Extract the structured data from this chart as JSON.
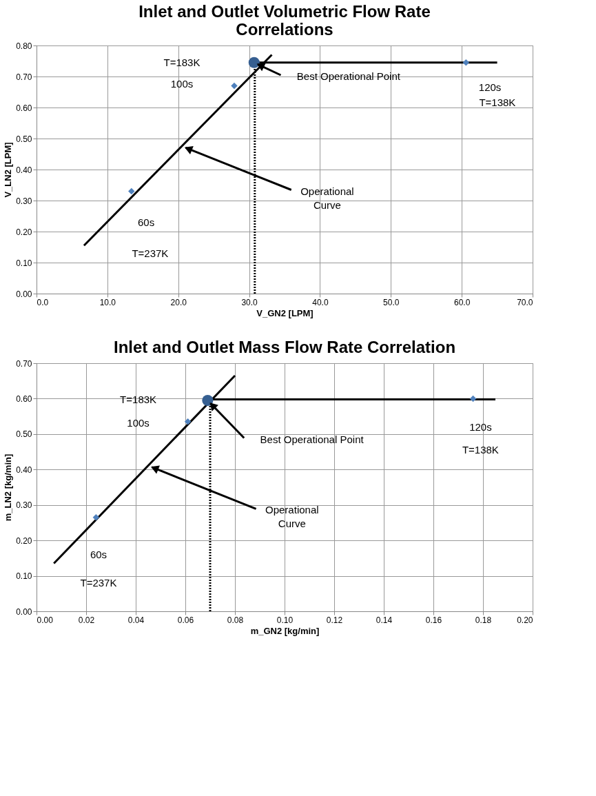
{
  "chart_data": [
    {
      "type": "scatter",
      "title": "Inlet and Outlet Volumetric Flow Rate\nCorrelations",
      "xlabel": "V_GN2 [LPM]",
      "ylabel": "V_LN2 [LPM]",
      "xlim": [
        0,
        70
      ],
      "ylim": [
        0,
        0.8
      ],
      "xticks": [
        {
          "value": 0,
          "label": "0.0"
        },
        {
          "value": 10,
          "label": "10.0"
        },
        {
          "value": 20,
          "label": "20.0"
        },
        {
          "value": 30,
          "label": "30.0"
        },
        {
          "value": 40,
          "label": "40.0"
        },
        {
          "value": 50,
          "label": "50.0"
        },
        {
          "value": 60,
          "label": "60.0"
        },
        {
          "value": 70,
          "label": "70.0"
        }
      ],
      "yticks": [
        {
          "value": 0,
          "label": "0.00"
        },
        {
          "value": 0.1,
          "label": "0.10"
        },
        {
          "value": 0.2,
          "label": "0.20"
        },
        {
          "value": 0.3,
          "label": "0.30"
        },
        {
          "value": 0.4,
          "label": "0.40"
        },
        {
          "value": 0.5,
          "label": "0.50"
        },
        {
          "value": 0.6,
          "label": "0.60"
        },
        {
          "value": 0.7,
          "label": "0.70"
        },
        {
          "value": 0.8,
          "label": "0.80"
        }
      ],
      "grid": true,
      "series": [
        {
          "type": "scatter",
          "marker": "diamond",
          "color": "#4f81bd",
          "x": [
            13.4,
            27.9,
            60.6
          ],
          "values": [
            0.33,
            0.67,
            0.745
          ]
        },
        {
          "type": "scatter",
          "marker": "circle",
          "color": "#365f91",
          "x": [
            30.7
          ],
          "values": [
            0.745
          ]
        },
        {
          "type": "line",
          "line_style": "solid",
          "color": "#000000",
          "x": [
            6.7,
            33.2
          ],
          "values": [
            0.155,
            0.77
          ]
        },
        {
          "type": "line",
          "line_style": "solid",
          "color": "#000000",
          "x": [
            30.7,
            65
          ],
          "values": [
            0.745,
            0.745
          ]
        },
        {
          "type": "line",
          "line_style": "dotted",
          "color": "#000000",
          "x": [
            30.8,
            30.8
          ],
          "values": [
            0,
            0.745
          ]
        }
      ],
      "annotations": [
        "T=183K",
        "100s",
        "Best Operational Point",
        "120s",
        "T=138K",
        {
          "text": "Operational\nCurve",
          "x": 20.5,
          "y": 0.475
        },
        "60s",
        "T=237K"
      ]
    },
    {
      "type": "scatter",
      "title": "Inlet and Outlet Mass Flow Rate Correlation",
      "xlabel": "m_GN2 [kg/min]",
      "ylabel": "m_LN2 [kg/min]",
      "xlim": [
        0,
        0.2
      ],
      "ylim": [
        0,
        0.7
      ],
      "xticks": [
        {
          "value": 0,
          "label": "0.00"
        },
        {
          "value": 0.02,
          "label": "0.02"
        },
        {
          "value": 0.04,
          "label": "0.04"
        },
        {
          "value": 0.06,
          "label": "0.06"
        },
        {
          "value": 0.08,
          "label": "0.08"
        },
        {
          "value": 0.1,
          "label": "0.10"
        },
        {
          "value": 0.12,
          "label": "0.12"
        },
        {
          "value": 0.14,
          "label": "0.14"
        },
        {
          "value": 0.16,
          "label": "0.16"
        },
        {
          "value": 0.18,
          "label": "0.18"
        },
        {
          "value": 0.2,
          "label": "0.20"
        }
      ],
      "yticks": [
        {
          "value": 0,
          "label": "0.00"
        },
        {
          "value": 0.1,
          "label": "0.10"
        },
        {
          "value": 0.2,
          "label": "0.20"
        },
        {
          "value": 0.3,
          "label": "0.30"
        },
        {
          "value": 0.4,
          "label": "0.40"
        },
        {
          "value": 0.5,
          "label": "0.50"
        },
        {
          "value": 0.6,
          "label": "0.60"
        },
        {
          "value": 0.7,
          "label": "0.70"
        }
      ],
      "grid": true,
      "series": [
        {
          "type": "scatter",
          "marker": "diamond",
          "color": "#4f81bd",
          "x": [
            0.024,
            0.061,
            0.176
          ],
          "values": [
            0.265,
            0.535,
            0.6
          ]
        },
        {
          "type": "scatter",
          "marker": "circle",
          "color": "#365f91",
          "x": [
            0.069
          ],
          "values": [
            0.595
          ]
        },
        {
          "type": "line",
          "line_style": "solid",
          "color": "#000000",
          "x": [
            0.007,
            0.08
          ],
          "values": [
            0.135,
            0.665
          ]
        },
        {
          "type": "line",
          "line_style": "solid",
          "color": "#000000",
          "x": [
            0.069,
            0.185
          ],
          "values": [
            0.598,
            0.598
          ]
        },
        {
          "type": "line",
          "line_style": "dotted",
          "color": "#000000",
          "x": [
            0.07,
            0.07
          ],
          "values": [
            0,
            0.595
          ]
        }
      ],
      "annotations": [
        "T=183K",
        "100s",
        "Best Operational Point",
        "120s",
        "T=138K",
        {
          "text": "Operational\nCurve",
          "x": 0.045,
          "y": 0.411
        },
        "60s",
        "T=237K"
      ]
    }
  ]
}
